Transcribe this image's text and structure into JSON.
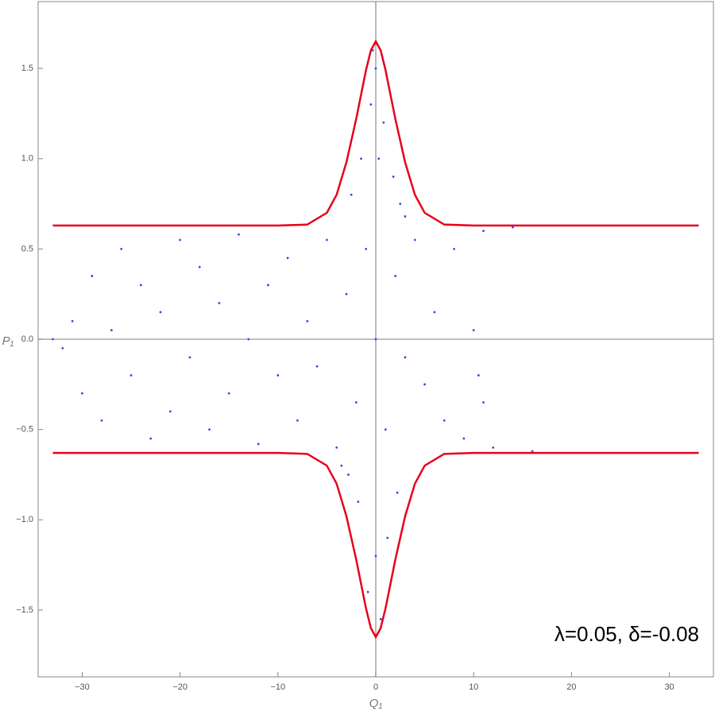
{
  "chart_data": {
    "type": "scatter",
    "xlabel": "Q₁",
    "ylabel": "P₁",
    "annotation": "λ=0.05, δ=-0.08",
    "xlim": [
      -34.5,
      34.5
    ],
    "ylim": [
      -1.87,
      1.87
    ],
    "xticks": [
      {
        "value": -30,
        "label": "−30"
      },
      {
        "value": -20,
        "label": "−20"
      },
      {
        "value": -10,
        "label": "−10"
      },
      0,
      10,
      20,
      30
    ],
    "yticks": [
      {
        "value": -1.5,
        "label": "−1.5"
      },
      {
        "value": -1.0,
        "label": "−1.0"
      },
      {
        "value": -0.5,
        "label": "−0.5"
      },
      {
        "value": 0,
        "label": "0.0"
      },
      {
        "value": 0.5,
        "label": "0.5"
      },
      {
        "value": 1.0,
        "label": "1.0"
      },
      {
        "value": 1.5,
        "label": "1.5"
      }
    ],
    "series": [
      {
        "color": "#3a46e0",
        "mode": "points",
        "x": [
          -31,
          -30,
          -29,
          -28,
          -27,
          -26,
          -25,
          -24,
          -23,
          -22,
          -21,
          -20,
          -19,
          -18,
          -17,
          -16,
          -15,
          -14,
          -13,
          -12,
          -11,
          -10,
          -9,
          -8,
          -7,
          -6,
          -5,
          -4,
          -3,
          -2,
          -1,
          0,
          1,
          2,
          3,
          4,
          5,
          6,
          7,
          8,
          9,
          11,
          12,
          14,
          16,
          10,
          10.5,
          11,
          -32,
          -33,
          0,
          -0.5,
          0.8,
          -1.5,
          1.8,
          -2.5,
          2.5,
          0.3,
          -0.8,
          0.5,
          1.2,
          -1.8,
          2.2,
          -2.8,
          0,
          -0.3,
          3,
          -3.5
        ],
        "y": [
          0.1,
          -0.3,
          0.35,
          -0.45,
          0.05,
          0.5,
          -0.2,
          0.3,
          -0.55,
          0.15,
          -0.4,
          0.55,
          -0.1,
          0.4,
          -0.5,
          0.2,
          -0.3,
          0.58,
          0.0,
          -0.58,
          0.3,
          -0.2,
          0.45,
          -0.45,
          0.1,
          -0.15,
          0.55,
          -0.6,
          0.25,
          -0.35,
          0.5,
          0.0,
          -0.5,
          0.35,
          -0.1,
          0.55,
          -0.25,
          0.15,
          -0.45,
          0.5,
          -0.55,
          0.6,
          -0.6,
          0.62,
          -0.62,
          0.05,
          -0.2,
          -0.35,
          -0.05,
          0.0,
          1.5,
          1.3,
          1.2,
          1.0,
          0.9,
          0.8,
          0.75,
          1.0,
          -1.4,
          -1.55,
          -1.1,
          -0.9,
          -0.85,
          -0.75,
          -1.2,
          1.6,
          0.68,
          -0.7
        ]
      },
      {
        "color": "#e8001c",
        "mode": "line",
        "x": [
          -33,
          -10,
          -7,
          -5,
          -4,
          -3,
          -2,
          -1,
          -0.5,
          0,
          0.5,
          1,
          2,
          3,
          4,
          5,
          7,
          10,
          33
        ],
        "y": [
          0.63,
          0.63,
          0.635,
          0.7,
          0.8,
          0.98,
          1.22,
          1.49,
          1.6,
          1.65,
          1.6,
          1.49,
          1.22,
          0.98,
          0.8,
          0.7,
          0.635,
          0.63,
          0.63
        ]
      },
      {
        "color": "#e8001c",
        "mode": "line",
        "x": [
          -33,
          -10,
          -7,
          -5,
          -4,
          -3,
          -2,
          -1,
          -0.5,
          0,
          0.5,
          1,
          2,
          3,
          4,
          5,
          7,
          10,
          33
        ],
        "y": [
          -0.63,
          -0.63,
          -0.635,
          -0.7,
          -0.8,
          -0.98,
          -1.22,
          -1.49,
          -1.6,
          -1.65,
          -1.6,
          -1.49,
          -1.22,
          -0.98,
          -0.8,
          -0.7,
          -0.635,
          -0.63,
          -0.63
        ]
      }
    ]
  }
}
